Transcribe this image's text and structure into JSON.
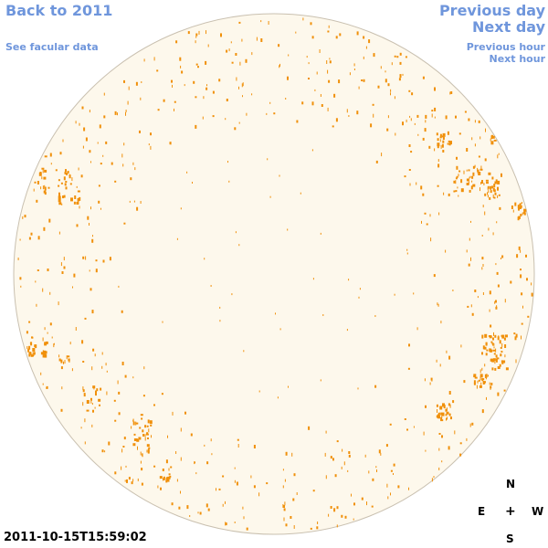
{
  "nav": {
    "back": "Back to 2011",
    "facular": "See facular data",
    "prev_day": "Previous day",
    "next_day": "Next day",
    "prev_hour": "Previous hour",
    "next_hour": "Next hour"
  },
  "timestamp": "2011-10-15T15:59:02",
  "compass": {
    "north": "N",
    "east": "E",
    "center": "+",
    "west": "W",
    "south": "S"
  },
  "colors": {
    "disk_fill": "#fdf8ec",
    "disk_stroke": "#c9c0b0",
    "facula": "#f0900a",
    "link": "#6f96dc"
  }
}
